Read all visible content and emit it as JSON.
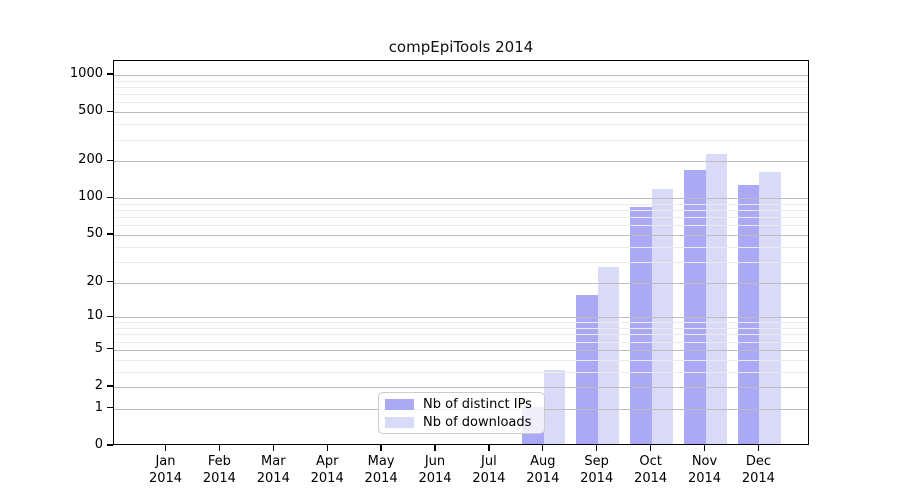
{
  "title": "compEpiTools 2014",
  "chart_data": {
    "type": "bar",
    "title": "compEpiTools 2014",
    "categories": [
      "Jan",
      "Feb",
      "Mar",
      "Apr",
      "May",
      "Jun",
      "Jul",
      "Aug",
      "Sep",
      "Oct",
      "Nov",
      "Dec"
    ],
    "x_sublabel_year": "2014",
    "series": [
      {
        "name": "Nb of distinct IPs",
        "color": "#a9a9f5",
        "values": [
          0,
          0,
          0,
          0,
          0,
          0,
          0,
          1,
          15,
          81,
          163,
          124
        ]
      },
      {
        "name": "Nb of downloads",
        "color": "#d9d9f8",
        "values": [
          0,
          0,
          0,
          0,
          0,
          0,
          0,
          3,
          26,
          114,
          220,
          157
        ]
      }
    ],
    "xlabel": "",
    "ylabel": "",
    "y_scale": "log1p",
    "ylim": [
      0,
      1300
    ],
    "y_ticks": [
      0,
      1,
      2,
      5,
      10,
      20,
      50,
      100,
      200,
      500,
      1000
    ],
    "y_minor_gridlines": [
      3,
      4,
      6,
      7,
      8,
      9,
      30,
      40,
      60,
      70,
      80,
      90,
      300,
      400,
      600,
      700,
      800,
      900
    ],
    "grid": "horizontal major+minor, drawn above bars",
    "legend_position": "lower center"
  },
  "legend": {
    "items": [
      {
        "label": "Nb of distinct IPs",
        "color": "#a9a9f5"
      },
      {
        "label": "Nb of downloads",
        "color": "#d9d9f8"
      }
    ]
  },
  "colors": {
    "background": "#ffffff",
    "spine": "#000000",
    "grid_major": "#bdbdbd",
    "grid_minor": "#ebebeb",
    "bar_dark": "#a9a9f5",
    "bar_light": "#d9d9f8"
  }
}
